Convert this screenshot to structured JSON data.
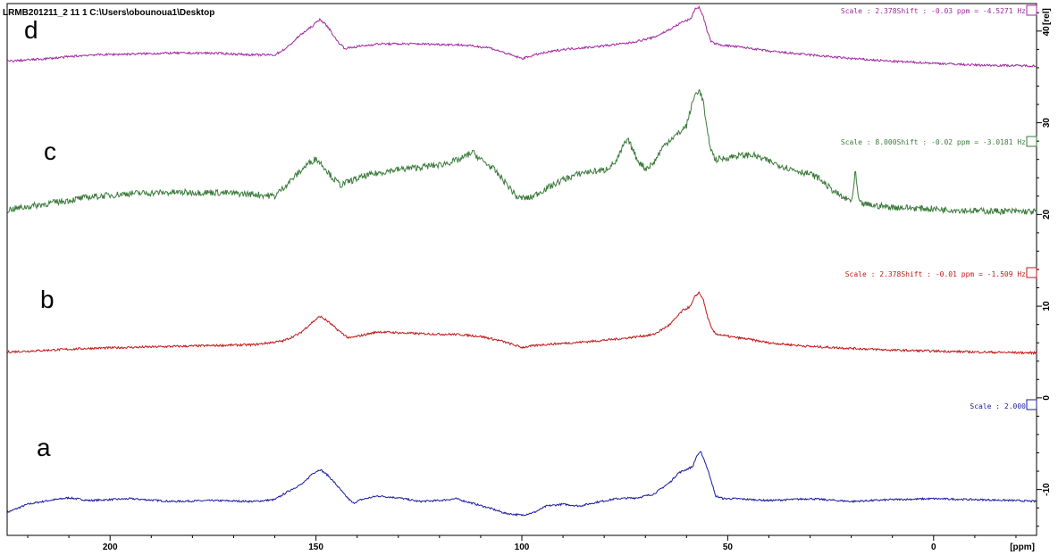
{
  "header": {
    "title": "LRMB201211_2 11 1 C:\\Users\\obounoua1\\Desktop"
  },
  "chart_data": {
    "type": "line",
    "xlabel": "[ppm]",
    "ylabel": "[rel]",
    "xlim": [
      225,
      -25
    ],
    "ylim": [
      -15,
      43
    ],
    "x_ticks": [
      200,
      150,
      100,
      50,
      0
    ],
    "y_ticks": [
      -10,
      0,
      10,
      20,
      30,
      40
    ],
    "grid": false,
    "series": [
      {
        "name": "a",
        "color": "#1a1aa0",
        "annotation": "Scale : 2.000",
        "noise": 0.1,
        "points": [
          [
            225,
            -12.5
          ],
          [
            220,
            -11.6
          ],
          [
            215,
            -11.2
          ],
          [
            210,
            -10.9
          ],
          [
            205,
            -11.2
          ],
          [
            200,
            -11.1
          ],
          [
            195,
            -11.0
          ],
          [
            185,
            -11.3
          ],
          [
            175,
            -11.2
          ],
          [
            165,
            -11.3
          ],
          [
            160,
            -11.1
          ],
          [
            156,
            -10.0
          ],
          [
            153,
            -9.3
          ],
          [
            151,
            -8.3
          ],
          [
            149,
            -7.8
          ],
          [
            147,
            -8.5
          ],
          [
            145,
            -9.5
          ],
          [
            143,
            -10.6
          ],
          [
            141,
            -11.5
          ],
          [
            139,
            -11.1
          ],
          [
            135,
            -10.7
          ],
          [
            130,
            -10.9
          ],
          [
            125,
            -11.3
          ],
          [
            120,
            -11.2
          ],
          [
            116,
            -11.0
          ],
          [
            112,
            -11.5
          ],
          [
            108,
            -12.0
          ],
          [
            104,
            -12.6
          ],
          [
            100,
            -12.8
          ],
          [
            97,
            -12.5
          ],
          [
            94,
            -11.8
          ],
          [
            90,
            -11.6
          ],
          [
            86,
            -11.8
          ],
          [
            82,
            -11.4
          ],
          [
            77,
            -11.0
          ],
          [
            72,
            -10.9
          ],
          [
            68,
            -10.5
          ],
          [
            64,
            -9.2
          ],
          [
            62,
            -8.2
          ],
          [
            60,
            -7.8
          ],
          [
            58.5,
            -7.5
          ],
          [
            57.5,
            -6.3
          ],
          [
            56.5,
            -5.9
          ],
          [
            55.5,
            -7.0
          ],
          [
            54,
            -9.0
          ],
          [
            53,
            -10.7
          ],
          [
            51,
            -11.0
          ],
          [
            48,
            -11.0
          ],
          [
            40,
            -11.2
          ],
          [
            30,
            -11.0
          ],
          [
            20,
            -11.3
          ],
          [
            10,
            -11.1
          ],
          [
            0,
            -11.0
          ],
          [
            -10,
            -11.1
          ],
          [
            -20,
            -11.2
          ],
          [
            -25,
            -11.3
          ]
        ]
      },
      {
        "name": "b",
        "color": "#c01818",
        "annotation": "Scale : 2.378Shift : -0.01 ppm = -1.509 Hz",
        "noise": 0.12,
        "points": [
          [
            225,
            5.0
          ],
          [
            215,
            5.2
          ],
          [
            205,
            5.4
          ],
          [
            195,
            5.5
          ],
          [
            185,
            5.6
          ],
          [
            175,
            5.7
          ],
          [
            165,
            5.8
          ],
          [
            158,
            6.2
          ],
          [
            154,
            7.0
          ],
          [
            151,
            8.2
          ],
          [
            149,
            8.9
          ],
          [
            147,
            8.3
          ],
          [
            145,
            7.5
          ],
          [
            142,
            6.5
          ],
          [
            139,
            6.8
          ],
          [
            135,
            7.2
          ],
          [
            125,
            7.0
          ],
          [
            115,
            6.9
          ],
          [
            110,
            6.7
          ],
          [
            105,
            6.2
          ],
          [
            100,
            5.5
          ],
          [
            95,
            5.8
          ],
          [
            88,
            6.0
          ],
          [
            82,
            6.2
          ],
          [
            75,
            6.5
          ],
          [
            68,
            6.9
          ],
          [
            64,
            8.0
          ],
          [
            61,
            9.5
          ],
          [
            59,
            10.0
          ],
          [
            58,
            11.0
          ],
          [
            57,
            11.5
          ],
          [
            56,
            10.8
          ],
          [
            55,
            9.0
          ],
          [
            54,
            7.6
          ],
          [
            53,
            7.0
          ],
          [
            50,
            6.7
          ],
          [
            45,
            6.4
          ],
          [
            40,
            6.0
          ],
          [
            30,
            5.6
          ],
          [
            20,
            5.4
          ],
          [
            10,
            5.2
          ],
          [
            0,
            5.1
          ],
          [
            -10,
            5.0
          ],
          [
            -25,
            4.9
          ]
        ]
      },
      {
        "name": "c",
        "color": "#3a7a3a",
        "annotation": "Scale : 8.000Shift : -0.02 ppm = -3.0181 Hz",
        "noise": 0.35,
        "points": [
          [
            225,
            20.5
          ],
          [
            215,
            21.2
          ],
          [
            205,
            21.9
          ],
          [
            195,
            22.3
          ],
          [
            185,
            22.4
          ],
          [
            175,
            22.4
          ],
          [
            165,
            22.2
          ],
          [
            160,
            22.0
          ],
          [
            158,
            22.9
          ],
          [
            155,
            24.2
          ],
          [
            152,
            25.5
          ],
          [
            150,
            26.1
          ],
          [
            148,
            25.2
          ],
          [
            146,
            24.0
          ],
          [
            144,
            23.2
          ],
          [
            142,
            23.6
          ],
          [
            138,
            24.2
          ],
          [
            132,
            24.8
          ],
          [
            126,
            25.1
          ],
          [
            120,
            25.4
          ],
          [
            115,
            26.0
          ],
          [
            112,
            26.8
          ],
          [
            110,
            26.0
          ],
          [
            107,
            25.0
          ],
          [
            104,
            23.5
          ],
          [
            101,
            21.8
          ],
          [
            98,
            21.8
          ],
          [
            95,
            22.6
          ],
          [
            90,
            23.8
          ],
          [
            85,
            24.6
          ],
          [
            80,
            24.8
          ],
          [
            77,
            25.8
          ],
          [
            75,
            27.8
          ],
          [
            74,
            28.0
          ],
          [
            72,
            26.0
          ],
          [
            70,
            25.0
          ],
          [
            68,
            25.6
          ],
          [
            66,
            27.2
          ],
          [
            64,
            28.2
          ],
          [
            62,
            28.8
          ],
          [
            60,
            29.7
          ],
          [
            59,
            31.5
          ],
          [
            58,
            33.0
          ],
          [
            57,
            33.6
          ],
          [
            56,
            32.5
          ],
          [
            55,
            29.0
          ],
          [
            54,
            27.0
          ],
          [
            53,
            26.0
          ],
          [
            51,
            26.1
          ],
          [
            48,
            26.4
          ],
          [
            44,
            26.5
          ],
          [
            40,
            25.8
          ],
          [
            35,
            25.0
          ],
          [
            30,
            24.4
          ],
          [
            28,
            24.0
          ],
          [
            25,
            22.8
          ],
          [
            22,
            21.8
          ],
          [
            20,
            21.5
          ],
          [
            19.5,
            22.5
          ],
          [
            19,
            24.8
          ],
          [
            18.5,
            22.5
          ],
          [
            18,
            21.2
          ],
          [
            15,
            21.0
          ],
          [
            10,
            20.8
          ],
          [
            0,
            20.6
          ],
          [
            -10,
            20.4
          ],
          [
            -25,
            20.3
          ]
        ]
      },
      {
        "name": "d",
        "color": "#a228a2",
        "annotation": "Scale : 2.378Shift : -0.03 ppm = -4.5271 Hz",
        "noise": 0.12,
        "points": [
          [
            225,
            36.7
          ],
          [
            215,
            37.0
          ],
          [
            205,
            37.4
          ],
          [
            195,
            37.5
          ],
          [
            185,
            37.6
          ],
          [
            175,
            37.6
          ],
          [
            165,
            37.4
          ],
          [
            160,
            37.4
          ],
          [
            157,
            38.2
          ],
          [
            154,
            39.5
          ],
          [
            151,
            40.5
          ],
          [
            149,
            41.3
          ],
          [
            147,
            40.4
          ],
          [
            145,
            39.0
          ],
          [
            143,
            38.1
          ],
          [
            140,
            38.3
          ],
          [
            135,
            38.6
          ],
          [
            125,
            38.6
          ],
          [
            115,
            38.5
          ],
          [
            108,
            38.2
          ],
          [
            104,
            37.6
          ],
          [
            100,
            37.0
          ],
          [
            96,
            37.5
          ],
          [
            90,
            38.0
          ],
          [
            82,
            38.3
          ],
          [
            74,
            38.7
          ],
          [
            68,
            39.3
          ],
          [
            64,
            40.2
          ],
          [
            61,
            41.0
          ],
          [
            59,
            41.3
          ],
          [
            58,
            42.4
          ],
          [
            57,
            42.6
          ],
          [
            56,
            41.7
          ],
          [
            55,
            40.0
          ],
          [
            54,
            38.8
          ],
          [
            52,
            38.5
          ],
          [
            48,
            38.3
          ],
          [
            44,
            38.1
          ],
          [
            40,
            37.8
          ],
          [
            30,
            37.4
          ],
          [
            20,
            37.0
          ],
          [
            10,
            36.7
          ],
          [
            0,
            36.5
          ],
          [
            -10,
            36.3
          ],
          [
            -25,
            36.2
          ]
        ]
      }
    ]
  }
}
